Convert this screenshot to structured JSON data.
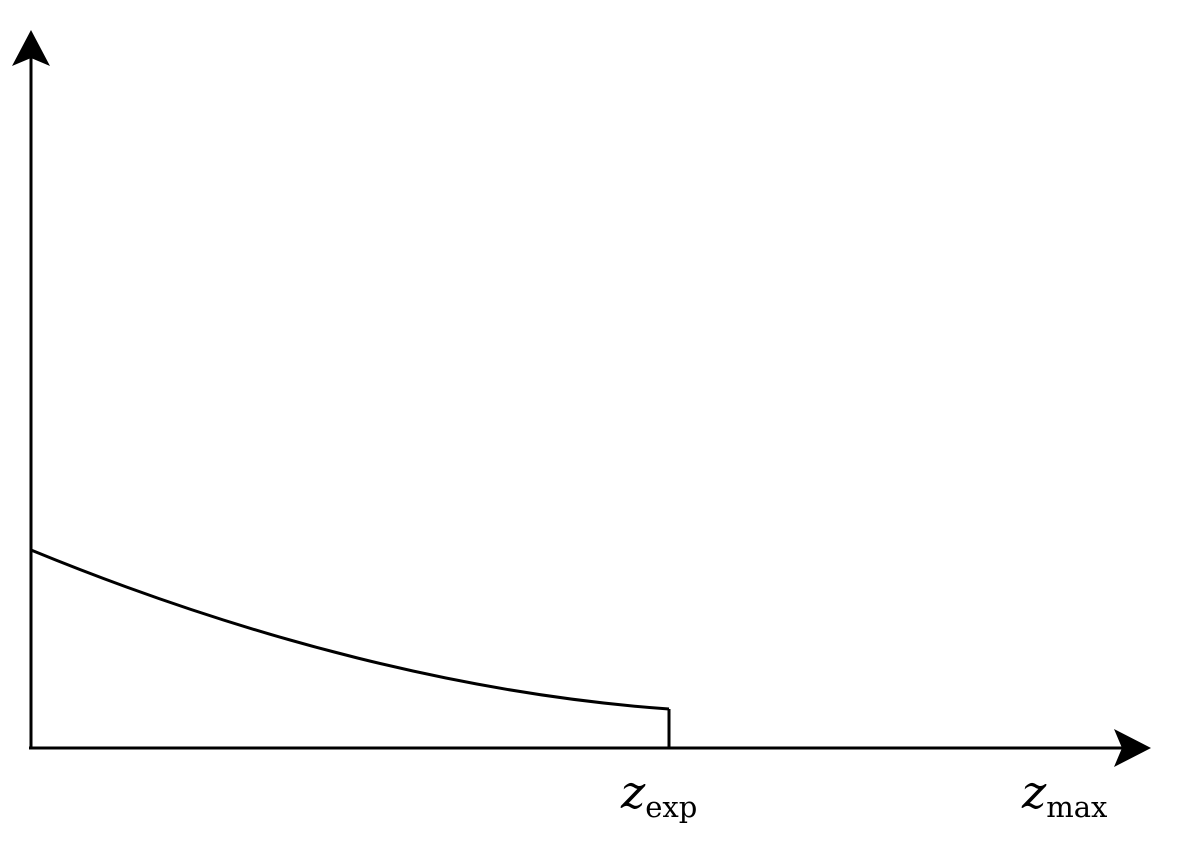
{
  "labels": {
    "z_exp": {
      "main": "z",
      "sub": "exp"
    },
    "z_max": {
      "main": "z",
      "sub": "max"
    }
  },
  "colors": {
    "stroke": "#000000",
    "background": "#ffffff"
  }
}
